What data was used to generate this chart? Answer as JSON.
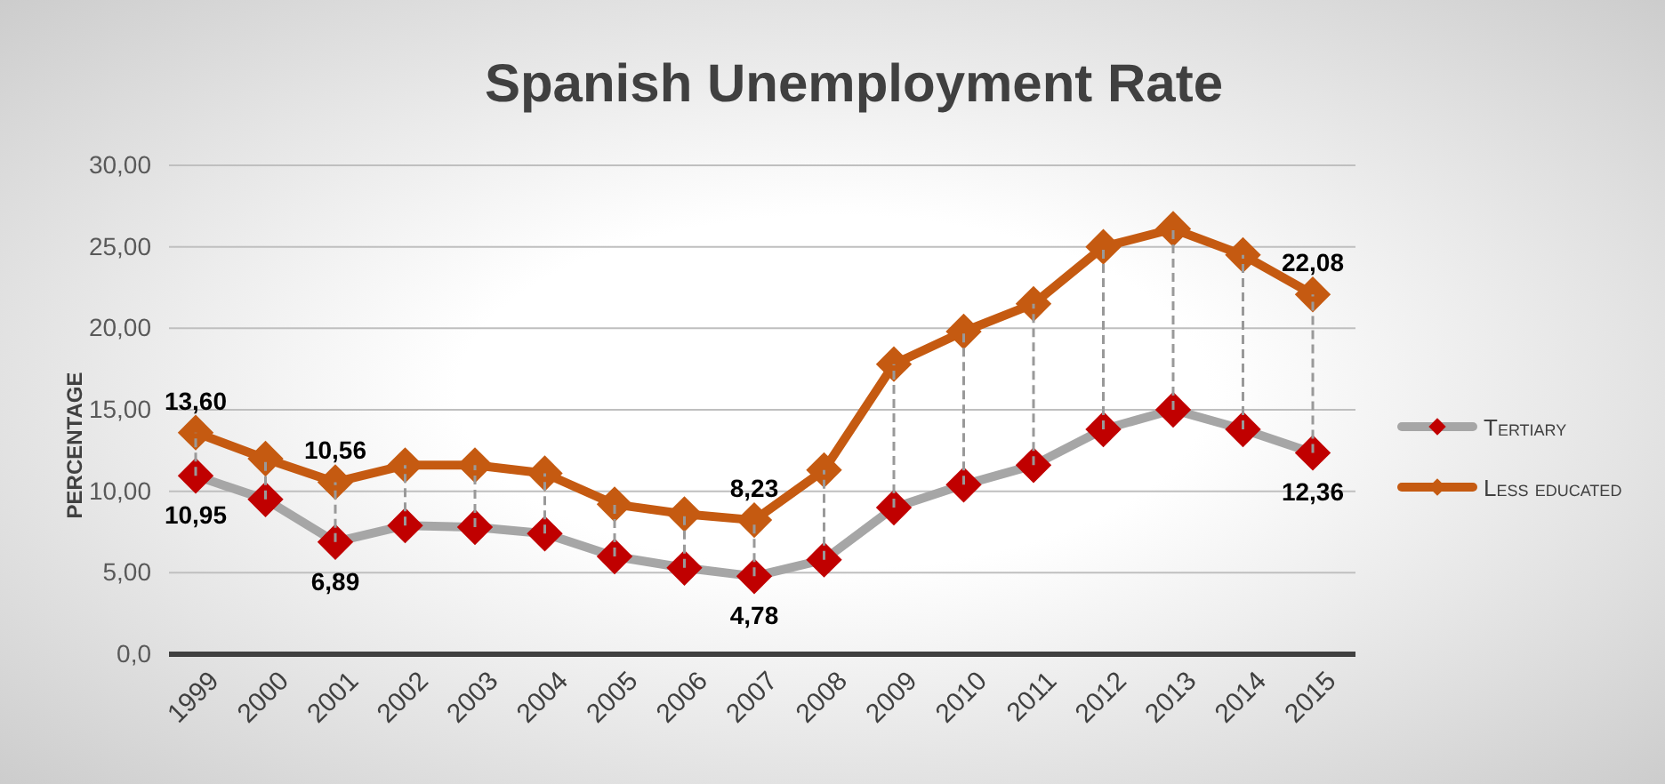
{
  "chart_data": {
    "type": "line",
    "title": "Spanish Unemployment Rate",
    "ylabel": "PERCENTAGE",
    "categories": [
      "1999",
      "2000",
      "2001",
      "2002",
      "2003",
      "2004",
      "2005",
      "2006",
      "2007",
      "2008",
      "2009",
      "2010",
      "2011",
      "2012",
      "2013",
      "2014",
      "2015"
    ],
    "series": [
      {
        "name": "Tertiary",
        "color": "#a6a6a6",
        "colors": [
          "#c00000",
          "#c00000",
          "#c00000",
          "#c00000",
          "#c00000",
          "#c00000",
          "#c00000",
          "#c00000",
          "#c00000",
          "#c00000",
          "#c00000",
          "#c00000",
          "#c00000",
          "#c00000",
          "#c00000",
          "#c00000",
          "#c00000"
        ],
        "values": [
          10.95,
          9.5,
          6.89,
          7.9,
          7.8,
          7.4,
          6.0,
          5.3,
          4.78,
          5.8,
          9.0,
          10.4,
          11.6,
          13.8,
          15.0,
          13.8,
          12.36
        ],
        "value_labels": [
          "10,95",
          null,
          "6,89",
          null,
          null,
          null,
          null,
          null,
          "4,78",
          null,
          null,
          null,
          null,
          null,
          null,
          null,
          "12,36"
        ]
      },
      {
        "name": "Less educated",
        "color": "#c55a11",
        "values": [
          13.6,
          12.0,
          10.56,
          11.6,
          11.6,
          11.1,
          9.2,
          8.6,
          8.23,
          11.3,
          17.8,
          19.8,
          21.5,
          25.0,
          26.1,
          24.5,
          22.08
        ],
        "errors": [
          [
            10.95,
            13.6
          ],
          [
            9.5,
            12.0
          ],
          [
            6.89,
            10.56
          ],
          [
            7.9,
            11.6
          ],
          [
            7.8,
            11.6
          ],
          [
            7.4,
            11.1
          ],
          [
            6.0,
            9.2
          ],
          [
            5.3,
            8.6
          ],
          [
            4.78,
            8.23
          ],
          [
            5.8,
            11.3
          ],
          [
            9.0,
            17.8
          ],
          [
            10.4,
            19.8
          ],
          [
            11.6,
            21.5
          ],
          [
            13.8,
            25.0
          ],
          [
            15.0,
            26.1
          ],
          [
            13.8,
            24.5
          ],
          [
            12.36,
            22.08
          ]
        ],
        "value_labels": [
          "13,60",
          null,
          "10,56",
          null,
          null,
          null,
          null,
          null,
          "8,23",
          null,
          null,
          null,
          null,
          null,
          null,
          null,
          "22,08"
        ]
      }
    ],
    "ylim": [
      0,
      30
    ],
    "yticks": [
      {
        "value": 0,
        "label": "0,0"
      },
      {
        "value": 5,
        "label": "5,00"
      },
      {
        "value": 10,
        "label": "10,00"
      },
      {
        "value": 15,
        "label": "15,00"
      },
      {
        "value": 20,
        "label": "20,00"
      },
      {
        "value": 25,
        "label": "25,00"
      },
      {
        "value": 30,
        "label": "30,00"
      }
    ],
    "grid": "y",
    "legend": "right",
    "marker": "diamond",
    "line_style": "solid"
  }
}
